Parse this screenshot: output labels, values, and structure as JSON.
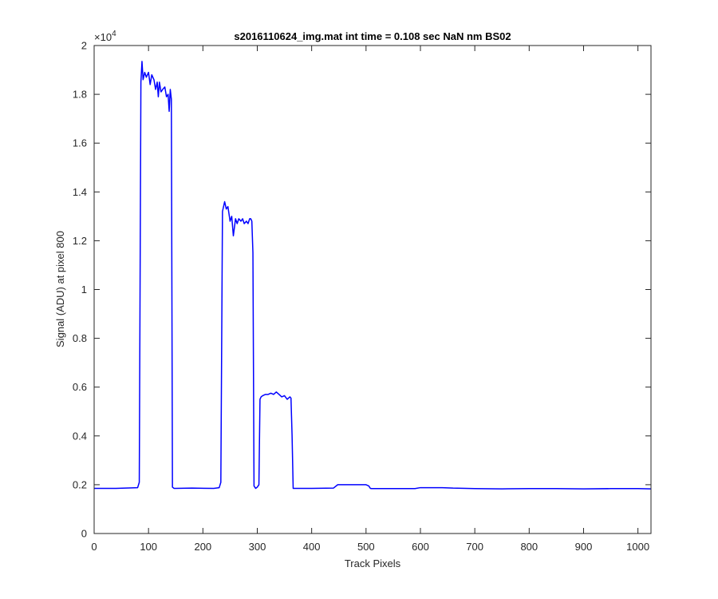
{
  "chart_data": {
    "type": "line",
    "title": "s2016110624_img.mat int time = 0.108 sec  NaN nm BS02",
    "xlabel": "Track Pixels",
    "ylabel": "Signal (ADU) at pixel 800",
    "xlim": [
      0,
      1024
    ],
    "ylim": [
      0,
      20000
    ],
    "x_ticks": [
      0,
      100,
      200,
      300,
      400,
      500,
      600,
      700,
      800,
      900,
      1000
    ],
    "y_ticks": [
      0,
      2000,
      4000,
      6000,
      8000,
      10000,
      12000,
      14000,
      16000,
      18000,
      20000
    ],
    "y_tick_labels": [
      "0",
      "0.2",
      "0.4",
      "0.6",
      "0.8",
      "1",
      "1.2",
      "1.4",
      "1.6",
      "1.8",
      "2"
    ],
    "y_exponent_base": "×10",
    "y_exponent_power": "4",
    "grid": false,
    "legend": "none",
    "line_color": "#0000ff",
    "series": [
      {
        "x": [
          0,
          40,
          80,
          83,
          86,
          88,
          90,
          93,
          96,
          100,
          103,
          106,
          110,
          113,
          116,
          118,
          120,
          123,
          126,
          130,
          133,
          136,
          138,
          140,
          142,
          143,
          144,
          147,
          150,
          180,
          220,
          230,
          233,
          236,
          238,
          240,
          243,
          246,
          250,
          253,
          256,
          260,
          263,
          266,
          270,
          273,
          276,
          280,
          283,
          286,
          288,
          290,
          292,
          294,
          297,
          300,
          303,
          305,
          307,
          310,
          315,
          320,
          325,
          330,
          335,
          340,
          345,
          350,
          355,
          360,
          362,
          364,
          366,
          370,
          400,
          440,
          448,
          452,
          480,
          500,
          505,
          508,
          510,
          550,
          590,
          600,
          620,
          640,
          660,
          700,
          750,
          800,
          850,
          900,
          950,
          1000,
          1024
        ],
        "y": [
          1850,
          1850,
          1880,
          2100,
          18500,
          19350,
          18600,
          18900,
          18700,
          18900,
          18400,
          18800,
          18600,
          18200,
          18500,
          17900,
          18500,
          18100,
          18200,
          18300,
          17900,
          18000,
          17300,
          18200,
          17800,
          10000,
          1900,
          1850,
          1850,
          1860,
          1850,
          1880,
          2100,
          13200,
          13400,
          13600,
          13300,
          13400,
          12800,
          13000,
          12200,
          12900,
          12700,
          12900,
          12800,
          12900,
          12700,
          12800,
          12700,
          12900,
          12900,
          12800,
          11500,
          1950,
          1850,
          1900,
          2000,
          5500,
          5600,
          5650,
          5700,
          5700,
          5750,
          5700,
          5800,
          5700,
          5600,
          5650,
          5500,
          5600,
          5550,
          4000,
          1850,
          1850,
          1850,
          1860,
          2000,
          2000,
          2000,
          2000,
          1950,
          1850,
          1840,
          1840,
          1840,
          1880,
          1880,
          1880,
          1860,
          1840,
          1830,
          1840,
          1840,
          1830,
          1840,
          1840,
          1830
        ]
      }
    ]
  }
}
